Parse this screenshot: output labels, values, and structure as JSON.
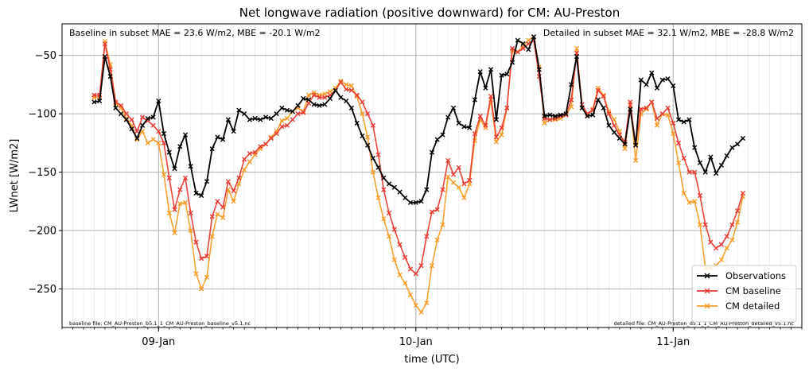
{
  "chart_data": {
    "type": "line",
    "title": "Net longwave radiation (positive downward) for CM: AU-Preston",
    "xlabel": "time (UTC)",
    "ylabel": "LWnet [W/m2]",
    "x_tick_labels": [
      "09-Jan",
      "10-Jan",
      "11-Jan"
    ],
    "x_tick_positions_hours": [
      24,
      48,
      72
    ],
    "x_unit": "hours since 08-Jan 00:00 UTC",
    "xlim": [
      15.0,
      84.0
    ],
    "ylim": [
      -283,
      -23
    ],
    "y_ticks": [
      -250,
      -200,
      -150,
      -100,
      -50
    ],
    "grid": true,
    "legend_position": "lower-right",
    "annotations": {
      "baseline_stats": "Baseline in subset MAE = 23.6 W/m2, MBE = -20.1 W/m2",
      "detailed_stats": "Detailed in subset MAE = 32.1 W/m2, MBE = -28.8 W/m2",
      "baseline_file": "baseline file: CM_AU-Preston_b5.1_1_CM_AU-Preston_baseline_v5.1.nc",
      "detailed_file": "detailed file: CM_AU-Preston_d5.1_1_CM_AU-Preston_detailed_v5.1.nc"
    },
    "series": [
      {
        "name": "Observations",
        "color": "#000000",
        "x_start": 18.0,
        "x_step": 0.5,
        "values": [
          -90,
          -89,
          -51,
          -68,
          -95,
          -100,
          -105,
          -113,
          -121,
          -110,
          -104,
          -103,
          -89,
          -117,
          -133,
          -147,
          -128,
          -118,
          -145,
          -168,
          -170,
          -158,
          -130,
          -120,
          -122,
          -105,
          -115,
          -97,
          -100,
          -105,
          -104,
          -105,
          -103,
          -104,
          -100,
          -95,
          -97,
          -98,
          -93,
          -87,
          -88,
          -92,
          -93,
          -92,
          -87,
          -80,
          -86,
          -89,
          -95,
          -108,
          -119,
          -127,
          -138,
          -146,
          -155,
          -160,
          -163,
          -167,
          -172,
          -176,
          -176,
          -175,
          -165,
          -133,
          -122,
          -118,
          -103,
          -95,
          -108,
          -111,
          -112,
          -88,
          -64,
          -78,
          -62,
          -105,
          -67,
          -66,
          -56,
          -37,
          -40,
          -45,
          -34,
          -62,
          -102,
          -101,
          -102,
          -101,
          -100,
          -75,
          -51,
          -95,
          -102,
          -101,
          -88,
          -95,
          -110,
          -116,
          -121,
          -126,
          -96,
          -127,
          -71,
          -75,
          -65,
          -78,
          -71,
          -70,
          -76,
          -105,
          -107,
          -105,
          -129,
          -142,
          -150,
          -137,
          -151,
          -144,
          -136,
          -129,
          -126,
          -121
        ]
      },
      {
        "name": "CM baseline",
        "color": "#e83a33",
        "x_start": 18.0,
        "x_step": 0.5,
        "values": [
          -84,
          -84,
          -40,
          -62,
          -90,
          -93,
          -100,
          -105,
          -115,
          -103,
          -106,
          -110,
          -115,
          -125,
          -155,
          -182,
          -165,
          -155,
          -185,
          -210,
          -224,
          -222,
          -188,
          -175,
          -180,
          -158,
          -166,
          -155,
          -139,
          -134,
          -133,
          -128,
          -126,
          -121,
          -117,
          -111,
          -110,
          -105,
          -100,
          -99,
          -91,
          -84,
          -86,
          -86,
          -84,
          -80,
          -73,
          -79,
          -80,
          -84,
          -90,
          -100,
          -110,
          -135,
          -165,
          -185,
          -199,
          -212,
          -223,
          -233,
          -237,
          -230,
          -205,
          -184,
          -182,
          -165,
          -140,
          -152,
          -146,
          -160,
          -157,
          -117,
          -102,
          -110,
          -85,
          -120,
          -112,
          -95,
          -44,
          -47,
          -44,
          -40,
          -37,
          -68,
          -104,
          -105,
          -104,
          -102,
          -101,
          -88,
          -48,
          -92,
          -100,
          -97,
          -80,
          -85,
          -100,
          -110,
          -118,
          -124,
          -90,
          -127,
          -96,
          -95,
          -90,
          -104,
          -100,
          -95,
          -108,
          -125,
          -138,
          -150,
          -150,
          -170,
          -195,
          -210,
          -215,
          -212,
          -205,
          -195,
          -183,
          -168
        ]
      },
      {
        "name": "CM detailed",
        "color": "#f89c28",
        "x_start": 18.0,
        "x_step": 0.5,
        "values": [
          -86,
          -86,
          -38,
          -58,
          -91,
          -95,
          -104,
          -110,
          -122,
          -115,
          -125,
          -122,
          -125,
          -152,
          -185,
          -202,
          -177,
          -176,
          -200,
          -237,
          -250,
          -240,
          -205,
          -186,
          -189,
          -165,
          -175,
          -160,
          -148,
          -141,
          -135,
          -130,
          -126,
          -120,
          -115,
          -106,
          -104,
          -98,
          -95,
          -98,
          -84,
          -82,
          -84,
          -83,
          -81,
          -78,
          -72,
          -75,
          -76,
          -85,
          -100,
          -120,
          -150,
          -172,
          -190,
          -205,
          -225,
          -238,
          -245,
          -255,
          -264,
          -270,
          -262,
          -230,
          -208,
          -195,
          -154,
          -159,
          -163,
          -172,
          -160,
          -123,
          -105,
          -112,
          -88,
          -124,
          -118,
          -95,
          -46,
          -47,
          -42,
          -37,
          -34,
          -60,
          -108,
          -105,
          -105,
          -104,
          -101,
          -94,
          -44,
          -95,
          -101,
          -96,
          -78,
          -84,
          -98,
          -105,
          -115,
          -130,
          -92,
          -140,
          -100,
          -96,
          -90,
          -110,
          -100,
          -101,
          -117,
          -142,
          -168,
          -176,
          -175,
          -195,
          -232,
          -232,
          -230,
          -225,
          -215,
          -208,
          -193,
          -171
        ]
      }
    ]
  }
}
